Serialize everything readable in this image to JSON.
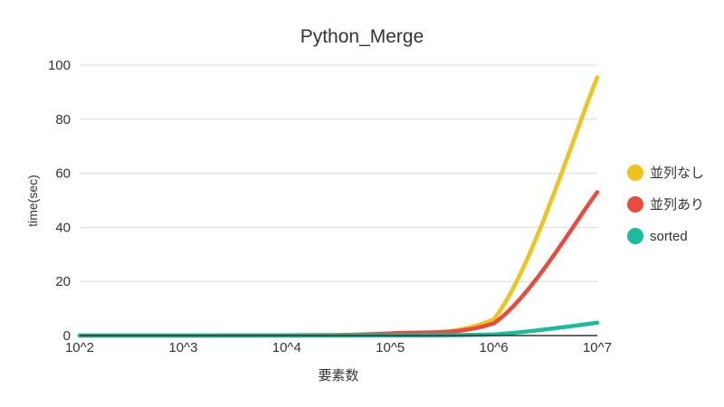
{
  "chart_data": {
    "type": "line",
    "title": "Python_Merge",
    "xlabel": "要素数",
    "ylabel": "time(sec)",
    "x": [
      "10^2",
      "10^3",
      "10^4",
      "10^5",
      "10^6",
      "10^7"
    ],
    "x_scale": "log",
    "ylim": [
      0,
      100
    ],
    "yticks": [
      0,
      20,
      40,
      60,
      80,
      100
    ],
    "grid": true,
    "legend_position": "right",
    "series": [
      {
        "name": "並列なし",
        "color": "#f1c21b",
        "values": [
          0.0,
          0.0,
          0.0,
          0.3,
          6.0,
          95.5
        ]
      },
      {
        "name": "並列あり",
        "color": "#e94b3c",
        "values": [
          0.0,
          0.0,
          0.1,
          0.8,
          4.5,
          53.0
        ]
      },
      {
        "name": "sorted",
        "color": "#1bbc9b",
        "values": [
          0.0,
          0.0,
          0.0,
          0.05,
          0.4,
          4.7
        ]
      }
    ]
  }
}
